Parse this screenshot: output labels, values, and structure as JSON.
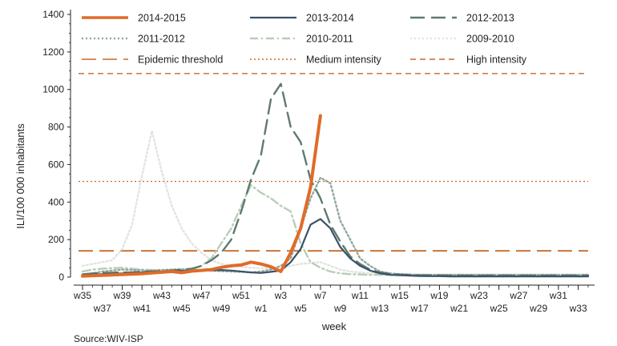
{
  "chart_data": {
    "type": "line",
    "title": "",
    "xlabel": "week",
    "ylabel": "ILI/100 000 inhabitants",
    "ylim": [
      0,
      1400
    ],
    "yticks": [
      "0",
      "200",
      "400",
      "600",
      "800",
      "1000",
      "1200",
      "1400"
    ],
    "ytick_values": [
      0,
      200,
      400,
      600,
      800,
      1000,
      1200,
      1400
    ],
    "x_upper_ticks": [
      "w35",
      "w39",
      "w43",
      "w47",
      "w51",
      "w3",
      "w7",
      "w11",
      "w15",
      "w19",
      "w23",
      "w27",
      "w31"
    ],
    "x_lower_ticks": [
      "w37",
      "w41",
      "w45",
      "w49",
      "w1",
      "w5",
      "w9",
      "w13",
      "w17",
      "w21",
      "w25",
      "w29",
      "w33"
    ],
    "weeks_count": 52,
    "source": "Source:WIV-ISP",
    "thresholds": [
      {
        "name": "Epidemic threshold",
        "value": 140,
        "color": "#c56a2a",
        "style": "longdash"
      },
      {
        "name": "Medium intensity",
        "value": 510,
        "color": "#c56a2a",
        "style": "dotted"
      },
      {
        "name": "High intensity",
        "value": 1085,
        "color": "#c56a2a",
        "style": "dashed"
      }
    ],
    "series": [
      {
        "name": "2014-2015",
        "color": "#e06b28",
        "style": "solid",
        "width": 4,
        "values": [
          5,
          8,
          10,
          12,
          14,
          16,
          18,
          22,
          26,
          30,
          24,
          32,
          36,
          40,
          52,
          60,
          65,
          80,
          70,
          55,
          30,
          130,
          260,
          480,
          860
        ]
      },
      {
        "name": "2013-2014",
        "color": "#3b5268",
        "style": "solid",
        "width": 2.2,
        "values": [
          10,
          14,
          16,
          18,
          20,
          22,
          25,
          28,
          30,
          32,
          33,
          34,
          35,
          36,
          38,
          35,
          30,
          25,
          22,
          28,
          35,
          80,
          150,
          280,
          310,
          260,
          160,
          100,
          60,
          35,
          20,
          12,
          10,
          8,
          6,
          5,
          5,
          4,
          4,
          4,
          4,
          4,
          4,
          4,
          4,
          4,
          4,
          4,
          4,
          4,
          4,
          4
        ]
      },
      {
        "name": "2012-2013",
        "color": "#5f7a70",
        "style": "longdash",
        "width": 2.4,
        "values": [
          15,
          20,
          22,
          24,
          25,
          26,
          28,
          30,
          33,
          36,
          40,
          45,
          60,
          90,
          130,
          200,
          350,
          520,
          650,
          950,
          1030,
          800,
          720,
          520,
          420,
          280,
          190,
          110,
          70,
          40,
          25,
          18,
          14,
          12,
          10,
          10,
          9,
          9,
          9,
          9,
          9,
          9,
          9,
          9,
          9,
          9,
          9,
          9,
          9,
          9,
          9,
          9
        ]
      },
      {
        "name": "2011-2012",
        "color": "#8fa99c",
        "style": "dotted",
        "width": 2.4,
        "values": [
          10,
          20,
          30,
          35,
          40,
          38,
          36,
          35,
          38,
          40,
          42,
          40,
          38,
          35,
          32,
          30,
          28,
          25,
          30,
          40,
          60,
          100,
          260,
          420,
          530,
          500,
          300,
          200,
          100,
          60,
          30,
          20,
          16,
          14,
          12,
          12,
          12,
          12,
          12,
          12,
          12,
          12,
          12,
          12,
          12,
          12,
          12,
          12,
          12,
          12,
          12,
          12
        ]
      },
      {
        "name": "2010-2011",
        "color": "#b9cdb8",
        "style": "dashdot",
        "width": 2.4,
        "values": [
          30,
          40,
          45,
          48,
          50,
          45,
          40,
          38,
          36,
          34,
          36,
          40,
          60,
          100,
          180,
          260,
          380,
          490,
          450,
          420,
          380,
          350,
          180,
          80,
          50,
          30,
          20,
          16,
          14,
          12,
          12,
          12,
          12,
          12,
          12,
          12,
          12,
          12,
          12,
          12,
          12,
          12,
          12,
          12,
          12,
          12,
          12,
          12,
          12,
          12,
          12,
          12
        ]
      },
      {
        "name": "2009-2010",
        "color": "#e1e4e1",
        "style": "dotted",
        "width": 2.4,
        "values": [
          60,
          70,
          80,
          90,
          150,
          280,
          540,
          780,
          560,
          380,
          260,
          180,
          130,
          90,
          70,
          60,
          55,
          50,
          48,
          46,
          44,
          60,
          70,
          75,
          80,
          60,
          40,
          30,
          25,
          20,
          18,
          16,
          15,
          14,
          14,
          14,
          14,
          14,
          14,
          14,
          14,
          14,
          14,
          14,
          14,
          14,
          14,
          14,
          14,
          14,
          14,
          14
        ]
      }
    ]
  }
}
